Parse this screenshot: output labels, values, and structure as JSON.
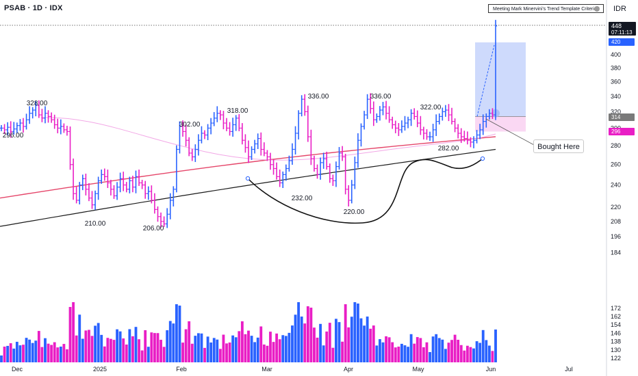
{
  "header": {
    "symbol": "PSAB · 1D · IDX",
    "currency": "IDR",
    "indicator_label": "Meeting Mark Minervini's Trend Template Criteria?"
  },
  "colors": {
    "up": "#2962ff",
    "down": "#e91ec5",
    "ma_red": "#e5466a",
    "ma_black": "#1a1a1a",
    "ma_pink": "#f2a7e6",
    "position_target": "#c5d4fb",
    "position_stop": "#f9d4f2"
  },
  "annotations": {
    "bought_here": "Bought Here"
  },
  "price_tags": {
    "last": "448",
    "countdown": "07:11:13",
    "target": "420",
    "entry": "314",
    "stop": "296"
  },
  "chart_data": {
    "type": "bar",
    "title": "PSAB · 1D · IDX",
    "y_axis": {
      "scale": "log",
      "ticks": [
        122,
        130,
        138,
        146,
        154,
        162,
        172,
        184,
        196,
        208,
        220,
        240,
        260,
        280,
        300,
        320,
        340,
        360,
        380,
        400,
        420
      ],
      "range": [
        119,
        485
      ]
    },
    "x_axis": {
      "labels": [
        "Dec",
        "2025",
        "Feb",
        "Mar",
        "Apr",
        "May",
        "Jun",
        "Jul"
      ]
    },
    "price_labels": [
      {
        "text": "328.00",
        "value": 328
      },
      {
        "text": "296.00",
        "value": 296
      },
      {
        "text": "302.00",
        "value": 302
      },
      {
        "text": "318.00",
        "value": 318
      },
      {
        "text": "210.00",
        "value": 210
      },
      {
        "text": "206.00",
        "value": 206
      },
      {
        "text": "336.00",
        "value": 336
      },
      {
        "text": "232.00",
        "value": 232
      },
      {
        "text": "336.00",
        "value": 336
      },
      {
        "text": "220.00",
        "value": 220
      },
      {
        "text": "322.00",
        "value": 322
      },
      {
        "text": "282.00",
        "value": 282
      }
    ],
    "ohlc_closes": [
      300,
      298,
      301,
      296,
      299,
      303,
      306,
      302,
      310,
      318,
      322,
      328,
      316,
      312,
      318,
      314,
      310,
      304,
      300,
      302,
      298,
      296,
      260,
      232,
      226,
      240,
      246,
      236,
      228,
      222,
      232,
      244,
      250,
      248,
      242,
      236,
      230,
      238,
      246,
      240,
      236,
      244,
      238,
      248,
      242,
      240,
      232,
      234,
      226,
      218,
      212,
      208,
      206,
      214,
      226,
      236,
      276,
      302,
      296,
      286,
      272,
      268,
      276,
      286,
      294,
      292,
      300,
      306,
      312,
      318,
      316,
      306,
      300,
      296,
      304,
      312,
      300,
      286,
      278,
      268,
      276,
      282,
      288,
      276,
      272,
      268,
      260,
      256,
      248,
      242,
      250,
      256,
      264,
      276,
      294,
      318,
      336,
      320,
      290,
      266,
      256,
      250,
      262,
      266,
      258,
      246,
      244,
      258,
      272,
      268,
      236,
      226,
      240,
      262,
      286,
      302,
      316,
      336,
      324,
      310,
      314,
      322,
      326,
      318,
      310,
      304,
      300,
      298,
      302,
      306,
      310,
      318,
      314,
      306,
      298,
      294,
      290,
      290,
      298,
      308,
      314,
      320,
      322,
      316,
      308,
      300,
      294,
      290,
      288,
      286,
      284,
      286,
      292,
      298,
      308,
      314,
      318,
      316,
      448
    ],
    "volume_ticks": [
      122,
      130,
      138,
      146,
      154,
      162,
      172
    ],
    "moving_averages": [
      {
        "name": "MA red",
        "start": 228,
        "end": 290
      },
      {
        "name": "MA black",
        "start": 204,
        "end": 276
      }
    ],
    "position": {
      "entry": 314,
      "target": 420,
      "stop": 296
    }
  }
}
